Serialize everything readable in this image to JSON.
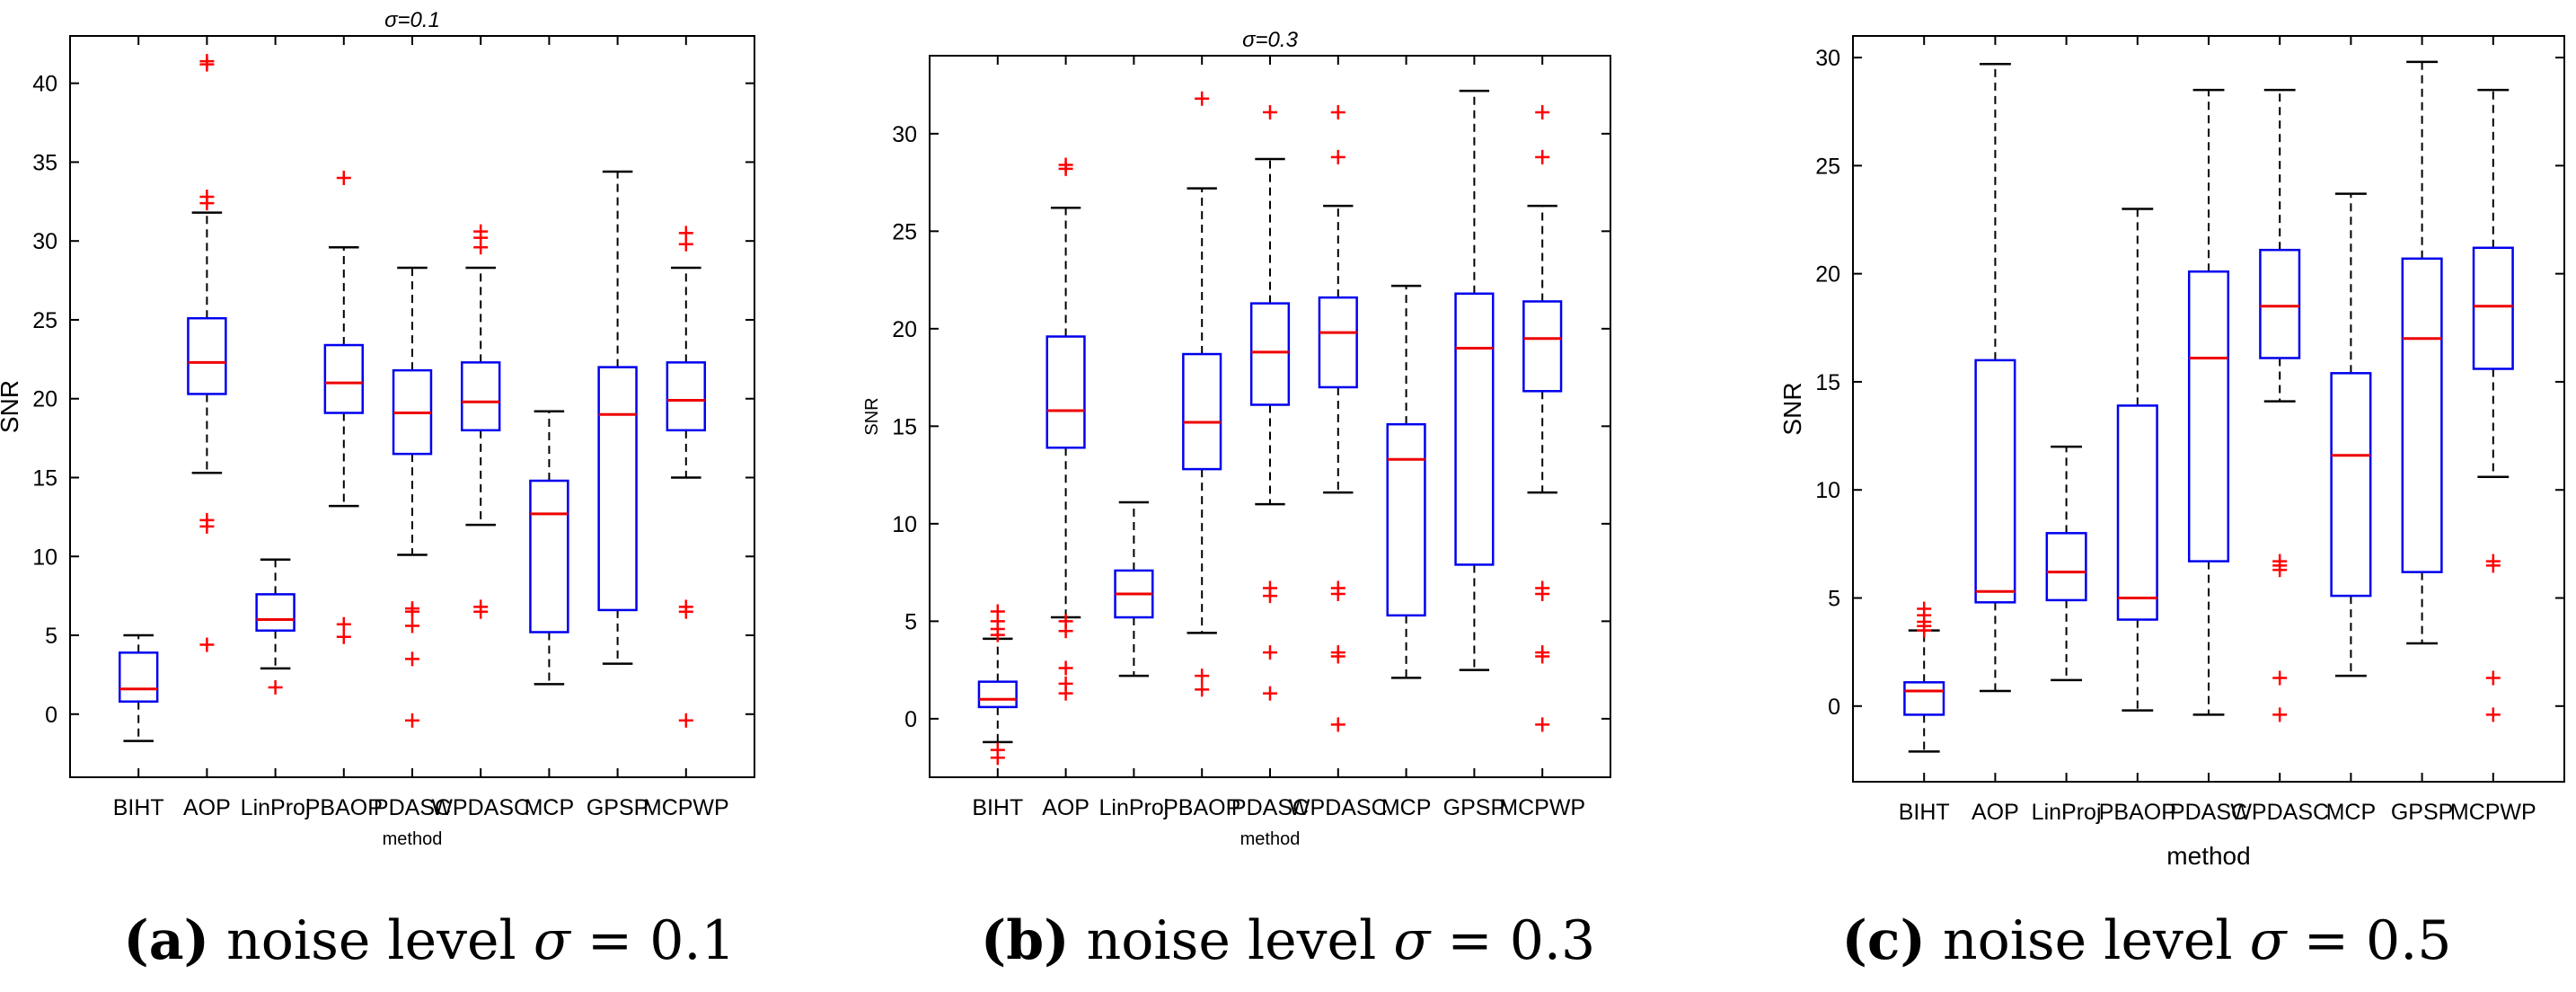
{
  "figure": {
    "captions": [
      {
        "letter": "(a)",
        "text": "noise level",
        "symbol": "σ",
        "rhs": "= 0.1"
      },
      {
        "letter": "(b)",
        "text": "noise level",
        "symbol": "σ",
        "rhs": "= 0.3"
      },
      {
        "letter": "(c)",
        "text": "noise level",
        "symbol": "σ",
        "rhs": "= 0.5"
      }
    ]
  },
  "colors": {
    "box": "#0000ee",
    "median": "#ee0000",
    "outlier": "#ff0000",
    "whisker": "#000000"
  },
  "chart_data": [
    {
      "type": "box",
      "title": "σ=0.1",
      "xlabel": "method",
      "ylabel": "SNR",
      "ylim": [
        -4,
        43
      ],
      "yticks": [
        0,
        5,
        10,
        15,
        20,
        25,
        30,
        35,
        40
      ],
      "categories": [
        "BIHT",
        "AOP",
        "LinProj",
        "PBAOP",
        "PDASC",
        "WPDASC",
        "MCP",
        "GPSP",
        "MCPWP"
      ],
      "boxes": [
        {
          "whisker_low": -1.7,
          "q1": 0.8,
          "median": 1.6,
          "q3": 3.9,
          "whisker_high": 5.0,
          "outliers": []
        },
        {
          "whisker_low": 15.3,
          "q1": 20.3,
          "median": 22.3,
          "q3": 25.1,
          "whisker_high": 31.8,
          "outliers": [
            41.2,
            41.4,
            32.4,
            32.8,
            12.3,
            11.9,
            4.4
          ]
        },
        {
          "whisker_low": 2.9,
          "q1": 5.3,
          "median": 6.0,
          "q3": 7.6,
          "whisker_high": 9.8,
          "outliers": [
            1.7
          ]
        },
        {
          "whisker_low": 13.2,
          "q1": 19.1,
          "median": 21.0,
          "q3": 23.4,
          "whisker_high": 29.6,
          "outliers": [
            34.0,
            5.7,
            4.9
          ]
        },
        {
          "whisker_low": 10.1,
          "q1": 16.5,
          "median": 19.1,
          "q3": 21.8,
          "whisker_high": 28.3,
          "outliers": [
            6.7,
            6.5,
            5.6,
            3.5,
            -0.4
          ]
        },
        {
          "whisker_low": 12.0,
          "q1": 18.0,
          "median": 19.8,
          "q3": 22.3,
          "whisker_high": 28.3,
          "outliers": [
            30.6,
            30.2,
            29.6,
            6.8,
            6.5
          ]
        },
        {
          "whisker_low": 1.9,
          "q1": 5.2,
          "median": 12.7,
          "q3": 14.8,
          "whisker_high": 19.2,
          "outliers": []
        },
        {
          "whisker_low": 3.2,
          "q1": 6.6,
          "median": 19.0,
          "q3": 22.0,
          "whisker_high": 34.4,
          "outliers": []
        },
        {
          "whisker_low": 15.0,
          "q1": 18.0,
          "median": 19.9,
          "q3": 22.3,
          "whisker_high": 28.3,
          "outliers": [
            30.5,
            29.8,
            6.8,
            6.5,
            -0.4
          ]
        }
      ]
    },
    {
      "type": "box",
      "title": "σ=0.3",
      "xlabel": "method",
      "ylabel": "SNR",
      "ylim": [
        -3,
        34
      ],
      "yticks": [
        0,
        5,
        10,
        15,
        20,
        25,
        30
      ],
      "categories": [
        "BIHT",
        "AOP",
        "LinProj",
        "PBAOP",
        "PDASC",
        "WPDASC",
        "MCP",
        "GPSP",
        "MCPWP"
      ],
      "boxes": [
        {
          "whisker_low": -1.2,
          "q1": 0.6,
          "median": 1.0,
          "q3": 1.9,
          "whisker_high": 4.1,
          "outliers": [
            5.5,
            5.0,
            4.6,
            4.3,
            -1.6,
            -2.0
          ]
        },
        {
          "whisker_low": 5.2,
          "q1": 13.9,
          "median": 15.8,
          "q3": 19.6,
          "whisker_high": 26.2,
          "outliers": [
            28.4,
            28.2,
            5.0,
            4.5,
            2.6,
            1.8,
            1.3
          ]
        },
        {
          "whisker_low": 2.2,
          "q1": 5.2,
          "median": 6.4,
          "q3": 7.6,
          "whisker_high": 11.1,
          "outliers": []
        },
        {
          "whisker_low": 4.4,
          "q1": 12.8,
          "median": 15.2,
          "q3": 18.7,
          "whisker_high": 27.2,
          "outliers": [
            31.8,
            2.2,
            1.5
          ]
        },
        {
          "whisker_low": 11.0,
          "q1": 16.1,
          "median": 18.8,
          "q3": 21.3,
          "whisker_high": 28.7,
          "outliers": [
            31.1,
            6.7,
            6.3,
            3.4,
            1.3
          ]
        },
        {
          "whisker_low": 11.6,
          "q1": 17.0,
          "median": 19.8,
          "q3": 21.6,
          "whisker_high": 26.3,
          "outliers": [
            31.1,
            28.8,
            6.7,
            6.4,
            3.4,
            3.2,
            -0.3
          ]
        },
        {
          "whisker_low": 2.1,
          "q1": 5.3,
          "median": 13.3,
          "q3": 15.1,
          "whisker_high": 22.2,
          "outliers": []
        },
        {
          "whisker_low": 2.5,
          "q1": 7.9,
          "median": 19.0,
          "q3": 21.8,
          "whisker_high": 32.2,
          "outliers": []
        },
        {
          "whisker_low": 11.6,
          "q1": 16.8,
          "median": 19.5,
          "q3": 21.4,
          "whisker_high": 26.3,
          "outliers": [
            31.1,
            28.8,
            6.7,
            6.4,
            3.4,
            3.2,
            -0.3
          ]
        }
      ]
    },
    {
      "type": "box",
      "title": "",
      "xlabel": "method",
      "ylabel": "SNR",
      "ylim": [
        -3.5,
        31
      ],
      "yticks": [
        0,
        5,
        10,
        15,
        20,
        25,
        30
      ],
      "categories": [
        "BIHT",
        "AOP",
        "LinProj",
        "PBAOP",
        "PDASC",
        "WPDASC",
        "MCP",
        "GPSP",
        "MCPWP"
      ],
      "boxes": [
        {
          "whisker_low": -2.1,
          "q1": -0.4,
          "median": 0.7,
          "q3": 1.1,
          "whisker_high": 3.5,
          "outliers": [
            4.5,
            4.2,
            3.9,
            3.7,
            3.5
          ]
        },
        {
          "whisker_low": 0.7,
          "q1": 4.8,
          "median": 5.3,
          "q3": 16.0,
          "whisker_high": 29.7,
          "outliers": []
        },
        {
          "whisker_low": 1.2,
          "q1": 4.9,
          "median": 6.2,
          "q3": 8.0,
          "whisker_high": 12.0,
          "outliers": []
        },
        {
          "whisker_low": -0.2,
          "q1": 4.0,
          "median": 5.0,
          "q3": 13.9,
          "whisker_high": 23.0,
          "outliers": []
        },
        {
          "whisker_low": -0.4,
          "q1": 6.7,
          "median": 16.1,
          "q3": 20.1,
          "whisker_high": 28.5,
          "outliers": []
        },
        {
          "whisker_low": 14.1,
          "q1": 16.1,
          "median": 18.5,
          "q3": 21.1,
          "whisker_high": 28.5,
          "outliers": [
            6.7,
            6.5,
            6.3,
            1.3,
            -0.4
          ]
        },
        {
          "whisker_low": 1.4,
          "q1": 5.1,
          "median": 11.6,
          "q3": 15.4,
          "whisker_high": 23.7,
          "outliers": []
        },
        {
          "whisker_low": 2.9,
          "q1": 6.2,
          "median": 17.0,
          "q3": 20.7,
          "whisker_high": 29.8,
          "outliers": []
        },
        {
          "whisker_low": 10.6,
          "q1": 15.6,
          "median": 18.5,
          "q3": 21.2,
          "whisker_high": 28.5,
          "outliers": [
            6.7,
            6.5,
            1.3,
            -0.4
          ]
        }
      ]
    }
  ]
}
